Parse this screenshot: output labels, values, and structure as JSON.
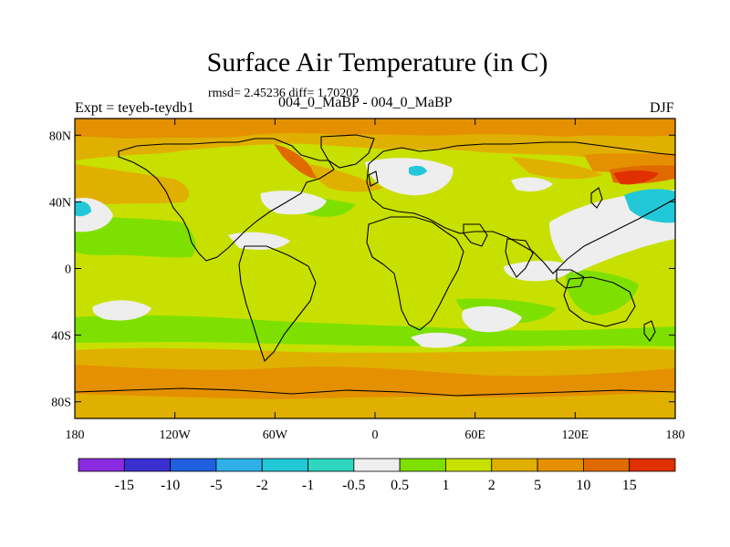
{
  "title": "Surface Air Temperature (in C)",
  "stats": "rmsd= 2.45236 diff= 1.70202",
  "left_label": "Expt = teyeb-teydb1",
  "center_label": "004_0_MaBP - 004_0_MaBP",
  "right_label": "DJF",
  "map": {
    "lon_range": [
      -180,
      180
    ],
    "lat_range": [
      -90,
      90
    ],
    "lat_ticks": [
      {
        "value": 80,
        "label": "80N"
      },
      {
        "value": 40,
        "label": "40N"
      },
      {
        "value": 0,
        "label": "0"
      },
      {
        "value": -40,
        "label": "40S"
      },
      {
        "value": -80,
        "label": "80S"
      }
    ],
    "lon_ticks": [
      {
        "value": -180,
        "label": "180"
      },
      {
        "value": -120,
        "label": "120W"
      },
      {
        "value": -60,
        "label": "60W"
      },
      {
        "value": 0,
        "label": "0"
      },
      {
        "value": 60,
        "label": "60E"
      },
      {
        "value": 120,
        "label": "120E"
      },
      {
        "value": 180,
        "label": "180"
      }
    ]
  },
  "colorbar": {
    "colors": [
      "#8a2be2",
      "#3a2fd0",
      "#1f5fe0",
      "#2fb0e8",
      "#22c8d8",
      "#2fd6c0",
      "#eeeeee",
      "#7ee000",
      "#c8e000",
      "#e0b000",
      "#e49000",
      "#e06a00",
      "#e03000"
    ],
    "labels": [
      "-15",
      "-10",
      "-5",
      "-2",
      "-1",
      "-0.5",
      "0.5",
      "1",
      "2",
      "5",
      "10",
      "15"
    ]
  }
}
